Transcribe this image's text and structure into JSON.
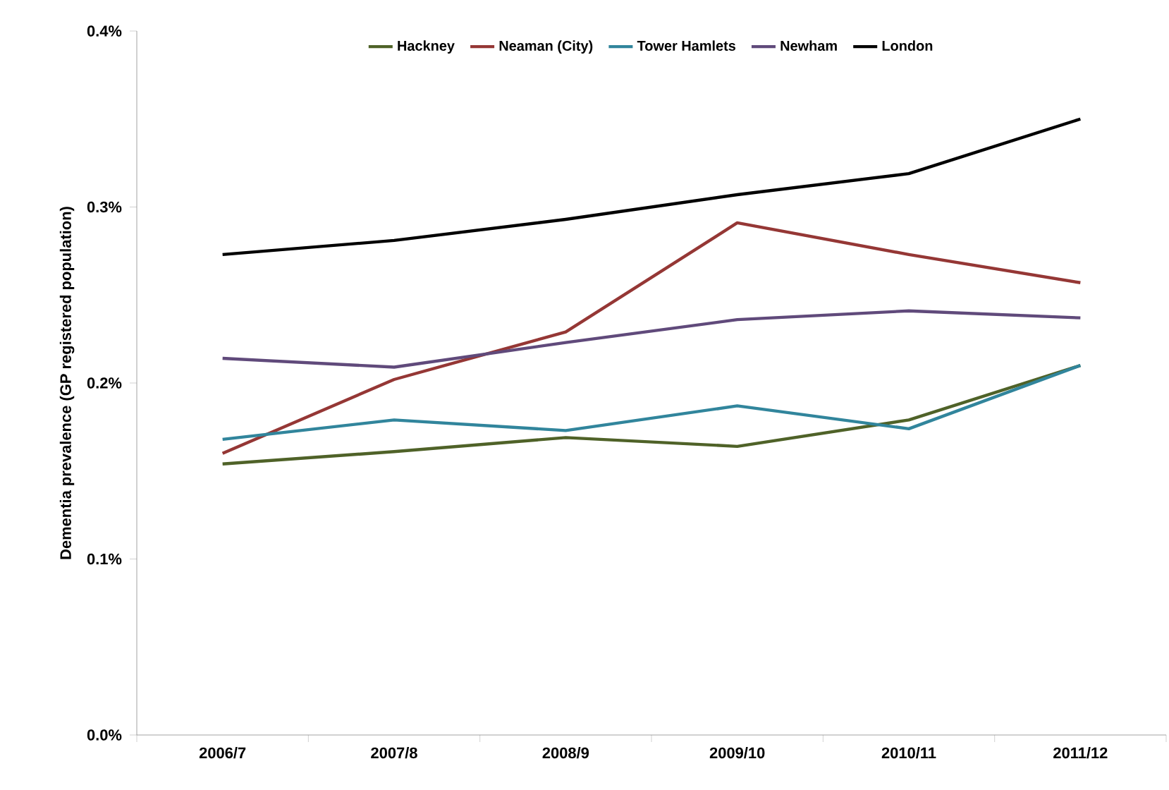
{
  "chart_data": {
    "type": "line",
    "ylabel": "Dementia prevalence (GP registered population)",
    "categories": [
      "2006/7",
      "2007/8",
      "2008/9",
      "2009/10",
      "2010/11",
      "2011/12"
    ],
    "series": [
      {
        "name": "Hackney",
        "color": "#4f6228",
        "values": [
          0.154,
          0.161,
          0.169,
          0.164,
          0.179,
          0.21
        ]
      },
      {
        "name": "Neaman (City)",
        "color": "#953735",
        "values": [
          0.16,
          0.202,
          0.229,
          0.291,
          0.273,
          0.257
        ]
      },
      {
        "name": "Tower Hamlets",
        "color": "#31859c",
        "values": [
          0.168,
          0.179,
          0.173,
          0.187,
          0.174,
          0.21
        ]
      },
      {
        "name": "Newham",
        "color": "#604a7b",
        "values": [
          0.214,
          0.209,
          0.223,
          0.236,
          0.241,
          0.237
        ]
      },
      {
        "name": "London",
        "color": "#000000",
        "values": [
          0.273,
          0.281,
          0.293,
          0.307,
          0.319,
          0.35
        ]
      }
    ],
    "ylim": [
      0,
      0.4
    ],
    "yticks": [
      {
        "value": 0,
        "label": "0.0%"
      },
      {
        "value": 0.1,
        "label": "0.1%"
      },
      {
        "value": 0.2,
        "label": "0.2%"
      },
      {
        "value": 0.3,
        "label": "0.3%"
      },
      {
        "value": 0.4,
        "label": "0.4%"
      }
    ],
    "grid": false,
    "legend": "top",
    "line_style": "solid",
    "marker": "none"
  }
}
